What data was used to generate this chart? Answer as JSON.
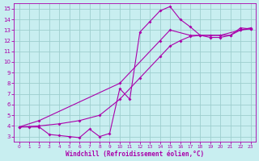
{
  "xlabel": "Windchill (Refroidissement éolien,°C)",
  "bg_color": "#c8eef0",
  "grid_color": "#9ecece",
  "line_color": "#aa00aa",
  "xlim": [
    -0.5,
    23.5
  ],
  "ylim": [
    2.5,
    15.5
  ],
  "xticks": [
    0,
    1,
    2,
    3,
    4,
    5,
    6,
    7,
    8,
    9,
    10,
    11,
    12,
    13,
    14,
    15,
    16,
    17,
    18,
    19,
    20,
    21,
    22,
    23
  ],
  "yticks": [
    3,
    4,
    5,
    6,
    7,
    8,
    9,
    10,
    11,
    12,
    13,
    14,
    15
  ],
  "curve1_x": [
    0,
    1,
    2,
    3,
    4,
    5,
    6,
    7,
    8,
    9,
    10,
    11,
    12,
    13,
    14,
    15,
    16,
    17,
    18,
    19,
    20,
    21,
    22,
    23
  ],
  "curve1_y": [
    3.9,
    3.9,
    3.9,
    3.2,
    3.1,
    3.0,
    2.9,
    3.7,
    3.0,
    3.3,
    7.5,
    6.5,
    12.8,
    13.8,
    14.8,
    15.2,
    14.0,
    13.3,
    12.5,
    12.3,
    12.3,
    12.5,
    13.2,
    13.1
  ],
  "curve2_x": [
    0,
    2,
    10,
    14,
    15,
    17,
    20,
    22,
    23
  ],
  "curve2_y": [
    3.9,
    4.5,
    8.0,
    12.0,
    13.0,
    12.5,
    12.5,
    13.0,
    13.2
  ],
  "curve3_x": [
    0,
    2,
    4,
    6,
    8,
    10,
    12,
    14,
    15,
    16,
    17,
    18,
    19,
    20,
    21,
    22,
    23
  ],
  "curve3_y": [
    3.9,
    4.0,
    4.2,
    4.5,
    5.0,
    6.5,
    8.5,
    10.5,
    11.5,
    12.0,
    12.4,
    12.5,
    12.5,
    12.5,
    12.5,
    13.0,
    13.1
  ],
  "marker_size": 2.0,
  "line_width": 0.8,
  "tick_fontsize_x": 4.2,
  "tick_fontsize_y": 5.0,
  "xlabel_fontsize": 5.5
}
